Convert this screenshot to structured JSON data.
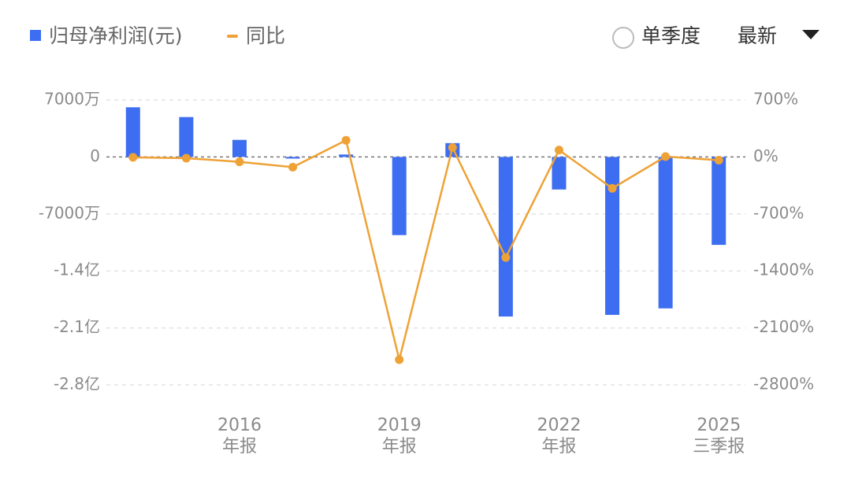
{
  "chart_data": {
    "type": "bar-line",
    "legend_bar": "归母净利润(元)",
    "legend_line": "同比",
    "controls": {
      "mode": "单季度",
      "period": "最新"
    },
    "categories": [
      null,
      null,
      [
        "2016",
        "年报"
      ],
      null,
      null,
      [
        "2019",
        "年报"
      ],
      null,
      null,
      [
        "2022",
        "年报"
      ],
      null,
      null,
      [
        "2025",
        "三季报"
      ]
    ],
    "series": [
      {
        "name": "归母净利润(元)",
        "color": "#3d6ef2",
        "values": [
          61000000,
          49000000,
          21000000,
          -2000000,
          3000000,
          -96000000,
          17000000,
          -196000000,
          -40000000,
          -194000000,
          -186000000,
          -108000000
        ]
      },
      {
        "name": "同比",
        "color": "#eea236",
        "axis": "y2",
        "values": [
          -5,
          -15,
          -60,
          -125,
          205,
          -2490,
          115,
          -1235,
          85,
          -385,
          5,
          -40
        ]
      }
    ],
    "ylim": [
      -280000000,
      70000000
    ],
    "yticks": [
      {
        "value": 70000000,
        "label": "7000万"
      },
      0,
      {
        "value": -70000000,
        "label": "-7000万"
      },
      {
        "value": -140000000,
        "label": "-1.4亿"
      },
      {
        "value": -210000000,
        "label": "-2.1亿"
      },
      {
        "value": -280000000,
        "label": "-2.8亿"
      }
    ],
    "y2lim": [
      -2800,
      700
    ],
    "y2ticks": [
      {
        "value": 700,
        "label": "700%"
      },
      {
        "value": 0,
        "label": "0%"
      },
      {
        "value": -700,
        "label": "-700%"
      },
      {
        "value": -1400,
        "label": "-1400%"
      },
      {
        "value": -2100,
        "label": "-2100%"
      },
      {
        "value": -2800,
        "label": "-2800%"
      }
    ],
    "grid": true
  }
}
